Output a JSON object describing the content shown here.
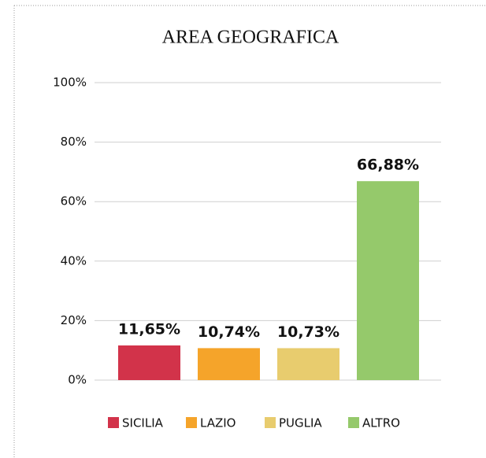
{
  "chart_data": {
    "type": "bar",
    "title": "AREA GEOGRAFICA",
    "categories": [
      "SICILIA",
      "LAZIO",
      "PUGLIA",
      "ALTRO"
    ],
    "values": [
      11.65,
      10.74,
      10.73,
      66.88
    ],
    "value_labels": [
      "11,65%",
      "10,74%",
      "10,73%",
      "66,88%"
    ],
    "colors": [
      "#d2334a",
      "#f5a42a",
      "#e8cc6e",
      "#95c96b"
    ],
    "ylim": [
      0,
      100
    ],
    "yticks": [
      {
        "value": 0,
        "label": "0%"
      },
      {
        "value": 20,
        "label": "20%"
      },
      {
        "value": 40,
        "label": "40%"
      },
      {
        "value": 60,
        "label": "60%"
      },
      {
        "value": 80,
        "label": "80%"
      },
      {
        "value": 100,
        "label": "100%"
      }
    ],
    "grid": true,
    "legend": "bottom"
  }
}
